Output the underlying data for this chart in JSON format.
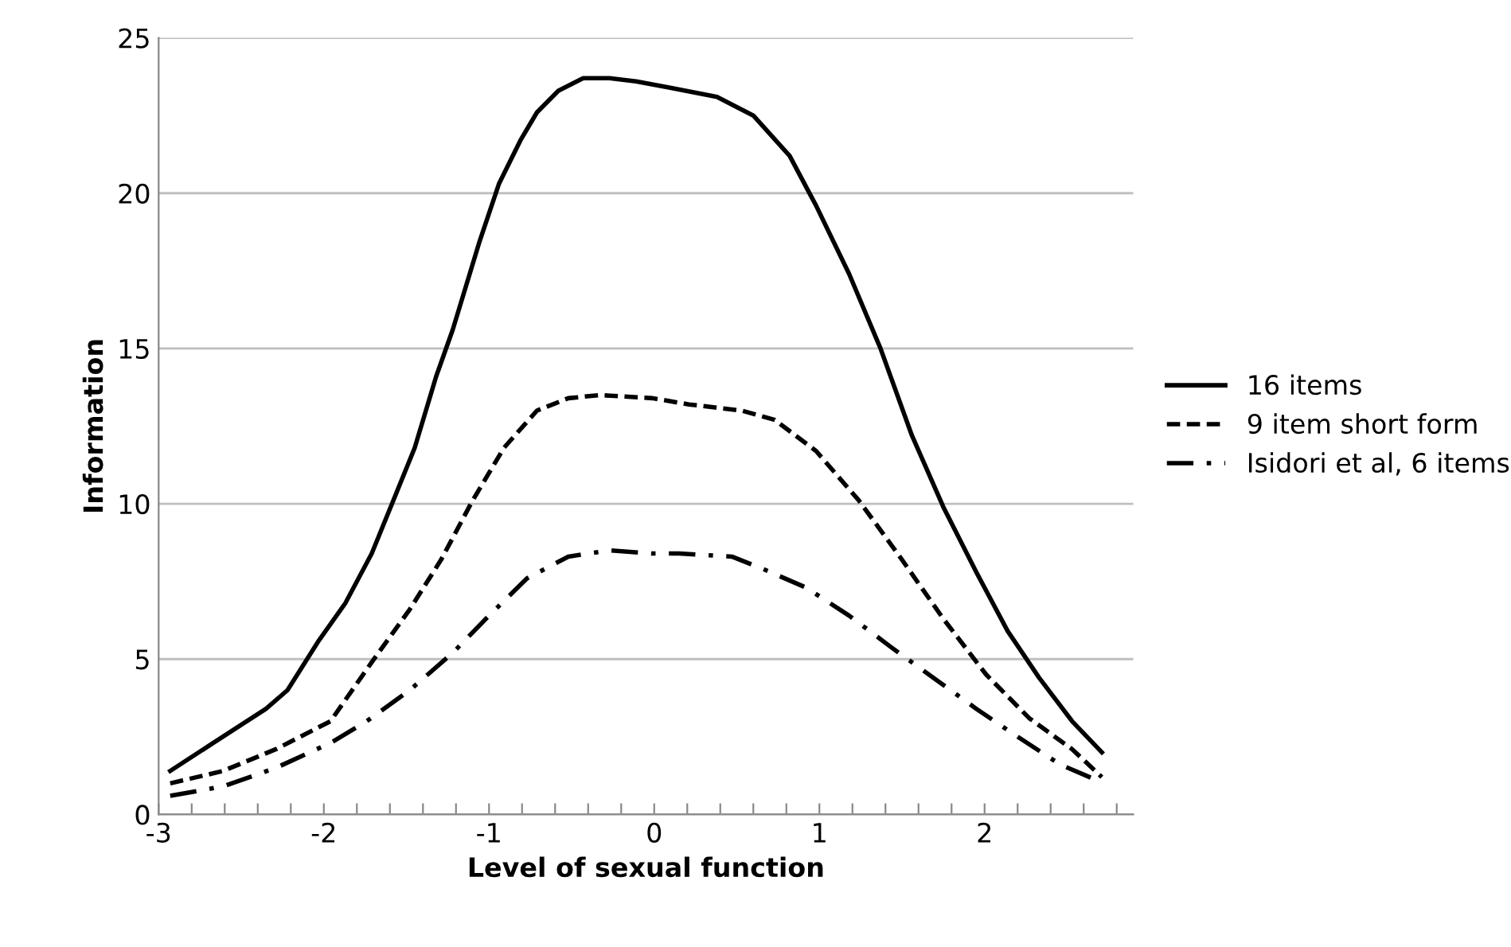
{
  "chart_data": {
    "type": "line",
    "xlabel": "Level of sexual function",
    "ylabel": "Information",
    "xlim": [
      -3,
      2.9
    ],
    "ylim": [
      0,
      25
    ],
    "xticks": [
      -3,
      {
        "value": -2.8,
        "label": null
      },
      {
        "value": -2.6,
        "label": null
      },
      {
        "value": -2.4,
        "label": null
      },
      {
        "value": -2.2,
        "label": null
      },
      -2,
      {
        "value": -1.8,
        "label": null
      },
      {
        "value": -1.6,
        "label": null
      },
      {
        "value": -1.4,
        "label": null
      },
      {
        "value": -1.2,
        "label": null
      },
      -1,
      {
        "value": -0.8,
        "label": null
      },
      {
        "value": -0.6,
        "label": null
      },
      {
        "value": -0.4,
        "label": null
      },
      {
        "value": -0.2,
        "label": null
      },
      0,
      {
        "value": 0.2,
        "label": null
      },
      {
        "value": 0.4,
        "label": null
      },
      {
        "value": 0.6,
        "label": null
      },
      {
        "value": 0.8,
        "label": null
      },
      1,
      {
        "value": 1.2,
        "label": null
      },
      {
        "value": 1.4,
        "label": null
      },
      {
        "value": 1.6,
        "label": null
      },
      {
        "value": 1.8,
        "label": null
      },
      2,
      {
        "value": 2.2,
        "label": null
      },
      {
        "value": 2.4,
        "label": null
      },
      {
        "value": 2.6,
        "label": null
      },
      {
        "value": 2.8,
        "label": null
      }
    ],
    "yticks": [
      0,
      5,
      10,
      15,
      20,
      25
    ],
    "grid": "y",
    "legend": "right",
    "series": [
      {
        "name": "16 items",
        "color": "#000000",
        "line_style": "solid",
        "x": [
          -2.93,
          -2.67,
          -2.35,
          -2.22,
          -2.03,
          -1.87,
          -1.71,
          -1.58,
          -1.45,
          -1.32,
          -1.22,
          -1.06,
          -0.94,
          -0.81,
          -0.71,
          -0.58,
          -0.43,
          -0.27,
          -0.11,
          0.09,
          0.38,
          0.6,
          0.82,
          0.98,
          1.18,
          1.37,
          1.56,
          1.75,
          1.95,
          2.14,
          2.33,
          2.53,
          2.71
        ],
        "values": [
          1.4,
          2.3,
          3.4,
          4.0,
          5.6,
          6.8,
          8.4,
          10.1,
          11.8,
          14.1,
          15.6,
          18.4,
          20.3,
          21.7,
          22.6,
          23.3,
          23.7,
          23.7,
          23.6,
          23.4,
          23.1,
          22.5,
          21.2,
          19.6,
          17.4,
          15.0,
          12.2,
          9.9,
          7.8,
          5.9,
          4.4,
          3.0,
          2.0
        ]
      },
      {
        "name": "9 item short form",
        "color": "#000000",
        "line_style": "dashed",
        "x": [
          -2.93,
          -2.61,
          -2.29,
          -1.96,
          -1.71,
          -1.48,
          -1.29,
          -1.1,
          -0.91,
          -0.71,
          -0.52,
          -0.33,
          -0.01,
          0.21,
          0.53,
          0.73,
          0.98,
          1.24,
          1.5,
          1.75,
          2.01,
          2.27,
          2.53,
          2.71
        ],
        "values": [
          1.0,
          1.4,
          2.1,
          3.0,
          4.9,
          6.6,
          8.2,
          10.1,
          11.8,
          13.0,
          13.4,
          13.5,
          13.4,
          13.2,
          13.0,
          12.7,
          11.7,
          10.1,
          8.2,
          6.3,
          4.5,
          3.1,
          2.1,
          1.2
        ]
      },
      {
        "name": "Isidori et al, 6 items",
        "color": "#000000",
        "line_style": "dashdot",
        "x": [
          -2.93,
          -2.61,
          -2.29,
          -1.96,
          -1.74,
          -1.48,
          -1.22,
          -1.0,
          -0.77,
          -0.52,
          -0.27,
          -0.01,
          0.15,
          0.47,
          0.66,
          0.92,
          1.18,
          1.43,
          1.69,
          1.95,
          2.2,
          2.46,
          2.68
        ],
        "values": [
          0.6,
          0.9,
          1.5,
          2.3,
          3.0,
          4.0,
          5.2,
          6.4,
          7.6,
          8.3,
          8.5,
          8.4,
          8.4,
          8.3,
          7.9,
          7.3,
          6.4,
          5.4,
          4.4,
          3.4,
          2.5,
          1.6,
          1.1
        ]
      }
    ]
  }
}
